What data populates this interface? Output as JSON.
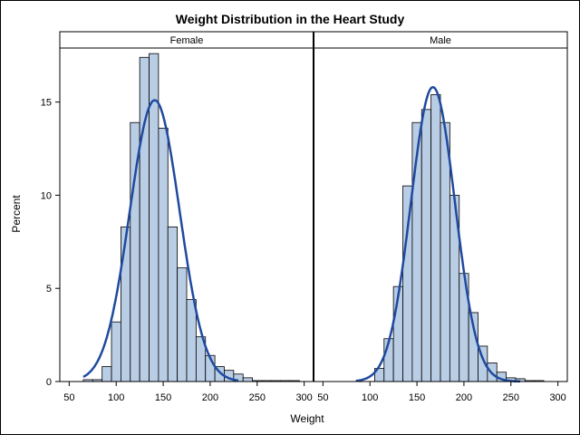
{
  "chart_data": {
    "type": "bar",
    "title": "Weight Distribution in the Heart Study",
    "xlabel": "Weight",
    "ylabel": "Percent",
    "xlim": [
      40,
      310
    ],
    "ylim": [
      0,
      17.9
    ],
    "x_ticks": [
      50,
      100,
      150,
      200,
      250,
      300
    ],
    "y_ticks": [
      0,
      5,
      10,
      15
    ],
    "grid": false,
    "bin_width": 10,
    "colors": {
      "bar_fill": "#b9cde5",
      "bar_edge": "#000000",
      "curve": "#1f4aa0"
    },
    "panels": [
      {
        "name": "Female",
        "bins": [
          {
            "x": 70,
            "y": 0.1
          },
          {
            "x": 80,
            "y": 0.1
          },
          {
            "x": 90,
            "y": 0.8
          },
          {
            "x": 100,
            "y": 3.2
          },
          {
            "x": 110,
            "y": 8.3
          },
          {
            "x": 120,
            "y": 13.9
          },
          {
            "x": 130,
            "y": 17.4
          },
          {
            "x": 140,
            "y": 17.6
          },
          {
            "x": 150,
            "y": 13.6
          },
          {
            "x": 160,
            "y": 8.3
          },
          {
            "x": 170,
            "y": 6.1
          },
          {
            "x": 180,
            "y": 4.4
          },
          {
            "x": 190,
            "y": 2.4
          },
          {
            "x": 200,
            "y": 1.4
          },
          {
            "x": 210,
            "y": 0.8
          },
          {
            "x": 220,
            "y": 0.6
          },
          {
            "x": 230,
            "y": 0.4
          },
          {
            "x": 240,
            "y": 0.2
          },
          {
            "x": 250,
            "y": 0.05
          },
          {
            "x": 260,
            "y": 0.05
          },
          {
            "x": 270,
            "y": 0.05
          },
          {
            "x": 280,
            "y": 0.05
          },
          {
            "x": 290,
            "y": 0.05
          }
        ],
        "curve": {
          "x_start": 65,
          "x_end": 230,
          "mean": 141,
          "sd": 26.5,
          "peak": 15.1
        }
      },
      {
        "name": "Male",
        "bins": [
          {
            "x": 110,
            "y": 0.7
          },
          {
            "x": 120,
            "y": 2.3
          },
          {
            "x": 130,
            "y": 5.1
          },
          {
            "x": 140,
            "y": 10.5
          },
          {
            "x": 150,
            "y": 13.9
          },
          {
            "x": 160,
            "y": 14.6
          },
          {
            "x": 170,
            "y": 15.4
          },
          {
            "x": 180,
            "y": 13.9
          },
          {
            "x": 190,
            "y": 10.0
          },
          {
            "x": 200,
            "y": 5.8
          },
          {
            "x": 210,
            "y": 3.7
          },
          {
            "x": 220,
            "y": 1.9
          },
          {
            "x": 230,
            "y": 1.0
          },
          {
            "x": 240,
            "y": 0.5
          },
          {
            "x": 250,
            "y": 0.2
          },
          {
            "x": 260,
            "y": 0.15
          },
          {
            "x": 270,
            "y": 0.05
          },
          {
            "x": 280,
            "y": 0.05
          }
        ],
        "curve": {
          "x_start": 85,
          "x_end": 260,
          "mean": 167,
          "sd": 23.5,
          "peak": 15.8
        }
      }
    ]
  }
}
